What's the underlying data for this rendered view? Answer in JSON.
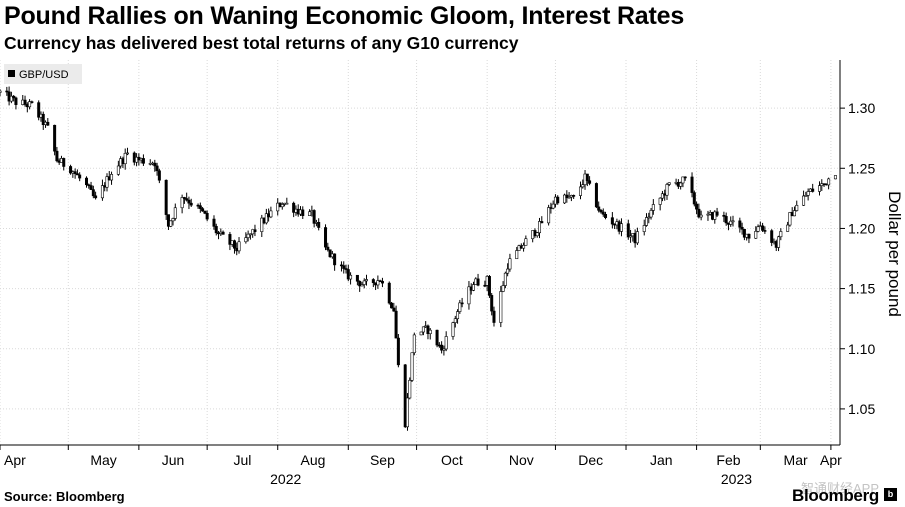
{
  "chart_data": {
    "type": "candlestick",
    "title": "Pound Rallies on Waning Economic Gloom, Interest Rates",
    "subtitle": "Currency has delivered best total returns of any G10 currency",
    "ylabel": "Dollar per pound",
    "ylim": [
      1.02,
      1.34
    ],
    "yticks": [
      1.05,
      1.1,
      1.15,
      1.2,
      1.25,
      1.3
    ],
    "ytick_labels": [
      "1.05",
      "1.10",
      "1.15",
      "1.20",
      "1.25",
      "1.30"
    ],
    "xlim": [
      "2022-04-01",
      "2023-04-05"
    ],
    "month_ticks": [
      {
        "date": "2022-04-01",
        "label": "Apr"
      },
      {
        "date": "2022-05-01",
        "label": "May"
      },
      {
        "date": "2022-06-01",
        "label": "Jun"
      },
      {
        "date": "2022-07-01",
        "label": "Jul"
      },
      {
        "date": "2022-08-01",
        "label": "Aug"
      },
      {
        "date": "2022-09-01",
        "label": "Sep"
      },
      {
        "date": "2022-10-01",
        "label": "Oct"
      },
      {
        "date": "2022-11-01",
        "label": "Nov"
      },
      {
        "date": "2022-12-01",
        "label": "Dec"
      },
      {
        "date": "2023-01-01",
        "label": "Jan"
      },
      {
        "date": "2023-02-01",
        "label": "Feb"
      },
      {
        "date": "2023-03-01",
        "label": "Mar"
      },
      {
        "date": "2023-04-01",
        "label": "Apr"
      }
    ],
    "year_labels": [
      {
        "date": "2022-08-01",
        "label": "2022"
      },
      {
        "date": "2023-02-15",
        "label": "2023"
      }
    ],
    "grid": true,
    "legend_position": "top-left",
    "series": [
      {
        "name": "GBP/USD",
        "path": [
          [
            "2022-04-01",
            1.313
          ],
          [
            "2022-04-08",
            1.305
          ],
          [
            "2022-04-15",
            1.302
          ],
          [
            "2022-04-22",
            1.283
          ],
          [
            "2022-04-26",
            1.257
          ],
          [
            "2022-05-02",
            1.25
          ],
          [
            "2022-05-09",
            1.235
          ],
          [
            "2022-05-13",
            1.223
          ],
          [
            "2022-05-20",
            1.247
          ],
          [
            "2022-05-27",
            1.262
          ],
          [
            "2022-06-01",
            1.257
          ],
          [
            "2022-06-08",
            1.255
          ],
          [
            "2022-06-14",
            1.203
          ],
          [
            "2022-06-20",
            1.228
          ],
          [
            "2022-06-29",
            1.213
          ],
          [
            "2022-07-06",
            1.195
          ],
          [
            "2022-07-14",
            1.183
          ],
          [
            "2022-07-22",
            1.199
          ],
          [
            "2022-07-29",
            1.213
          ],
          [
            "2022-08-03",
            1.222
          ],
          [
            "2022-08-10",
            1.215
          ],
          [
            "2022-08-16",
            1.211
          ],
          [
            "2022-08-22",
            1.183
          ],
          [
            "2022-08-31",
            1.162
          ],
          [
            "2022-09-08",
            1.153
          ],
          [
            "2022-09-15",
            1.158
          ],
          [
            "2022-09-21",
            1.133
          ],
          [
            "2022-09-23",
            1.085
          ],
          [
            "2022-09-26",
            1.039
          ],
          [
            "2022-09-30",
            1.113
          ],
          [
            "2022-10-06",
            1.116
          ],
          [
            "2022-10-12",
            1.099
          ],
          [
            "2022-10-19",
            1.131
          ],
          [
            "2022-10-26",
            1.155
          ],
          [
            "2022-11-01",
            1.157
          ],
          [
            "2022-11-04",
            1.122
          ],
          [
            "2022-11-10",
            1.17
          ],
          [
            "2022-11-17",
            1.187
          ],
          [
            "2022-11-24",
            1.202
          ],
          [
            "2022-12-01",
            1.225
          ],
          [
            "2022-12-09",
            1.225
          ],
          [
            "2022-12-14",
            1.242
          ],
          [
            "2022-12-21",
            1.212
          ],
          [
            "2022-12-28",
            1.203
          ],
          [
            "2023-01-05",
            1.191
          ],
          [
            "2023-01-12",
            1.214
          ],
          [
            "2023-01-20",
            1.236
          ],
          [
            "2023-01-27",
            1.24
          ],
          [
            "2023-02-03",
            1.208
          ],
          [
            "2023-02-10",
            1.212
          ],
          [
            "2023-02-17",
            1.203
          ],
          [
            "2023-02-24",
            1.194
          ],
          [
            "2023-03-01",
            1.203
          ],
          [
            "2023-03-08",
            1.186
          ],
          [
            "2023-03-15",
            1.214
          ],
          [
            "2023-03-22",
            1.23
          ],
          [
            "2023-03-29",
            1.237
          ],
          [
            "2023-04-03",
            1.248
          ]
        ]
      }
    ]
  },
  "footer": {
    "source": "Source: Bloomberg",
    "brand": "Bloomberg",
    "watermark": "智通财经APP"
  }
}
